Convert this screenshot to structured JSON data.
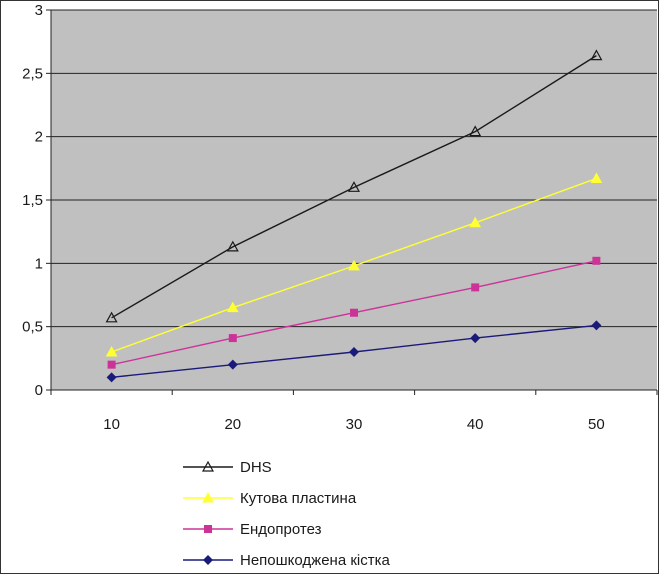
{
  "chart_data": {
    "type": "line",
    "x": [
      10,
      20,
      30,
      40,
      50
    ],
    "xticks": [
      "10",
      "20",
      "30",
      "40",
      "50"
    ],
    "ylim": [
      0,
      3
    ],
    "yticks": [
      "0",
      "0,5",
      "1",
      "1,5",
      "2",
      "2,5",
      "3"
    ],
    "grid": true,
    "legend_position": "bottom",
    "plot_background": "#c0c0c0",
    "series": [
      {
        "name": "DHS",
        "values": [
          0.57,
          1.13,
          1.6,
          2.04,
          2.64
        ],
        "color": "#1a1a1a",
        "marker": "triangle-open"
      },
      {
        "name": "Кутова пластина",
        "values": [
          0.3,
          0.65,
          0.98,
          1.32,
          1.67
        ],
        "color": "#ffff33",
        "marker": "triangle-filled"
      },
      {
        "name": "Ендопротез",
        "values": [
          0.2,
          0.41,
          0.61,
          0.81,
          1.02
        ],
        "color": "#cc3399",
        "marker": "square"
      },
      {
        "name": "Непошкоджена кістка",
        "values": [
          0.1,
          0.2,
          0.3,
          0.41,
          0.51
        ],
        "color": "#1a1a7a",
        "marker": "diamond"
      }
    ]
  }
}
